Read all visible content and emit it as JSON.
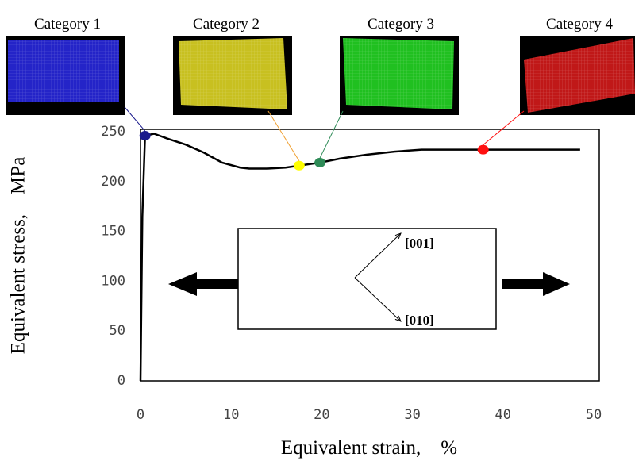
{
  "chart_data": {
    "type": "line",
    "x_label": "Equivalent strain,　%",
    "y_label": "Equivalent stress,　MPa",
    "xlim": [
      0,
      50
    ],
    "ylim": [
      0,
      250
    ],
    "xticks": [
      0,
      10,
      20,
      30,
      40,
      50
    ],
    "yticks": [
      0,
      50,
      100,
      150,
      200,
      250
    ],
    "line": {
      "color": "#000000",
      "x": [
        0,
        0.2,
        0.5,
        1.5,
        3,
        5,
        7,
        9,
        11,
        12,
        14,
        16,
        17.5,
        19.8,
        22,
        25,
        28,
        31,
        35,
        37.8,
        42,
        48.5
      ],
      "values": [
        0,
        165,
        246,
        248,
        243,
        237,
        229,
        219,
        214,
        213,
        213,
        214,
        216,
        219,
        223,
        227,
        230,
        232,
        232,
        232,
        232,
        232
      ]
    },
    "markers": [
      {
        "name": "Category 1",
        "color": "#1a1a8c",
        "thumbnail_color": "#2424c8",
        "x": 0.5,
        "value": 246
      },
      {
        "name": "Category 2",
        "color": "#ffff00",
        "thumbnail_color": "#c8c020",
        "x": 17.5,
        "value": 216
      },
      {
        "name": "Category 3",
        "color": "#2e8b57",
        "thumbnail_color": "#20c020",
        "x": 19.8,
        "value": 219
      },
      {
        "name": "Category 4",
        "color": "#ff1010",
        "thumbnail_color": "#c01818",
        "x": 37.8,
        "value": 232
      }
    ],
    "annotations": [
      "[001]",
      "[010]"
    ]
  }
}
